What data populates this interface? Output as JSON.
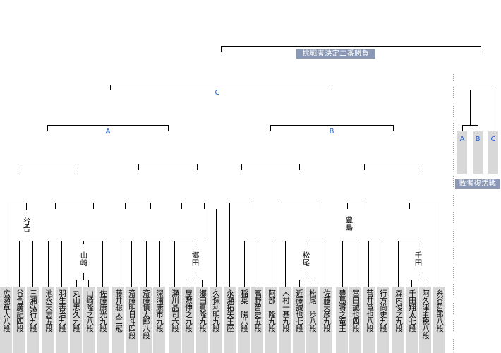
{
  "titles": {
    "final": "挑戦者決定二番勝負",
    "losers": "敗者復活戦"
  },
  "blocks": [
    "C",
    "A",
    "B"
  ],
  "revival_blocks": [
    "A",
    "B",
    "C"
  ],
  "seed_labels": {
    "taniai": "谷合",
    "yamasaki": "山崎",
    "gouda": "郷田",
    "toyoshima": "豊島",
    "matsuo": "松尾",
    "senda": "千田"
  },
  "players": [
    "広瀬章人八段",
    "谷合廣紀四段",
    "三浦弘行九段",
    "池永天志五段",
    "羽生善治九段",
    "丸山忠久九段",
    "山崎隆之八段",
    "佐藤康光九段",
    "藤井聡太二冠",
    "斎藤明日斗四段",
    "斎藤慎太郎八段",
    "深浦康市九段",
    "瀬川晶司六段",
    "屋敷伸之九段",
    "郷田真隆九段",
    "久保利明九段",
    "永瀬拓矢王座",
    "稲葉　陽八段",
    "高野智史五段",
    "阿部　隆九段",
    "木村一基九段",
    "近藤誠也七段",
    "松尾　歩八段",
    "佐藤天彦九段",
    "豊島将之竜王",
    "冨田誠也四段",
    "菅井竜也八段",
    "行方尚史九段",
    "森内俊之九段",
    "千田翔太七段",
    "阿久津主税八段",
    "糸谷哲郎八段"
  ]
}
